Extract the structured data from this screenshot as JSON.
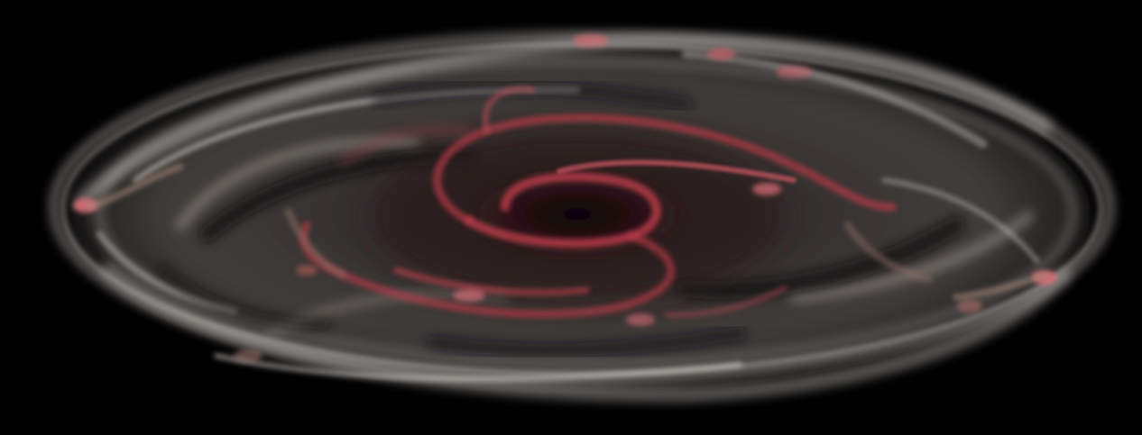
{
  "image": {
    "subject": "spiral-galaxy-disk",
    "colors": {
      "background": "#000000",
      "disk_light": "#d8d3cf",
      "disk_mid": "#8f8985",
      "disk_dark": "#2a2a2c",
      "arm_red": "#c8414e",
      "arm_pink": "#e0707a",
      "core_dark": "#1a0d10"
    }
  }
}
